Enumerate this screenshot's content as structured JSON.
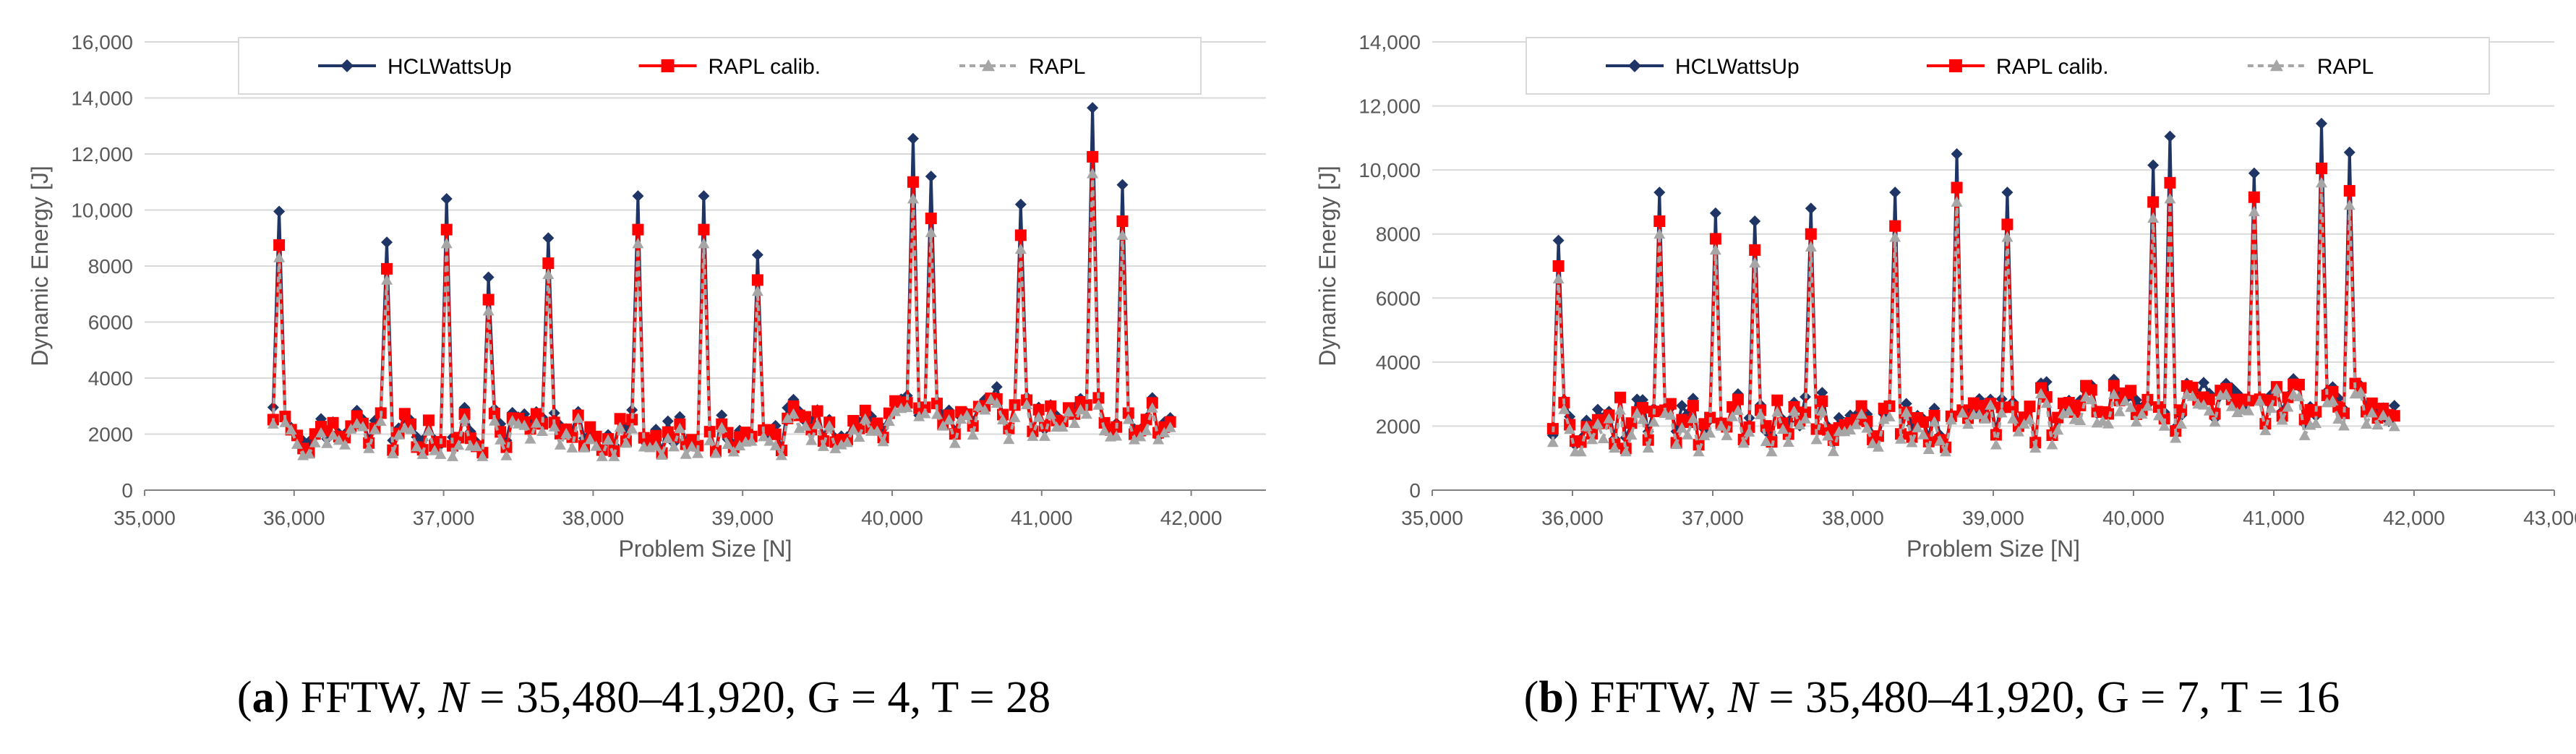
{
  "colors": {
    "hcl": "#1F3566",
    "rapl_calib": "#FF0000",
    "rapl": "#A6A6A6",
    "grid": "#D9D9D9",
    "axis": "#808080",
    "text": "#595959"
  },
  "chart_data": [
    {
      "type": "line",
      "xlabel": "Problem Size [N]",
      "ylabel": "Dynamic Energy [J]",
      "xlim": [
        35000,
        42500
      ],
      "ylim": [
        0,
        16000
      ],
      "x_ticks": [
        "35,000",
        "36,000",
        "37,000",
        "38,000",
        "39,000",
        "40,000",
        "41,000",
        "42,000"
      ],
      "y_ticks": [
        "0",
        "2000",
        "4000",
        "6000",
        "8000",
        "10,000",
        "12,000",
        "14,000",
        "16,000"
      ],
      "grid": "horizontal",
      "legend": "top",
      "peaks": [
        {
          "x": 35900,
          "hcl": 9950,
          "rapl_calib": 8750,
          "rapl": 8300
        },
        {
          "x": 36600,
          "hcl": 8850,
          "rapl_calib": 7900,
          "rapl": 7500
        },
        {
          "x": 37000,
          "hcl": 10400,
          "rapl_calib": 9300,
          "rapl": 8800
        },
        {
          "x": 37300,
          "hcl": 7600,
          "rapl_calib": 6800,
          "rapl": 6400
        },
        {
          "x": 37700,
          "hcl": 9000,
          "rapl_calib": 8100,
          "rapl": 7700
        },
        {
          "x": 38280,
          "hcl": 10500,
          "rapl_calib": 9300,
          "rapl": 8800
        },
        {
          "x": 38720,
          "hcl": 10500,
          "rapl_calib": 9300,
          "rapl": 8800
        },
        {
          "x": 39100,
          "hcl": 8400,
          "rapl_calib": 7500,
          "rapl": 7100
        },
        {
          "x": 40120,
          "hcl": 12550,
          "rapl_calib": 11000,
          "rapl": 10400
        },
        {
          "x": 40260,
          "hcl": 11200,
          "rapl_calib": 9700,
          "rapl": 9200
        },
        {
          "x": 40840,
          "hcl": 10200,
          "rapl_calib": 9100,
          "rapl": 8600
        },
        {
          "x": 41340,
          "hcl": 13650,
          "rapl_calib": 11900,
          "rapl": 11300
        },
        {
          "x": 41540,
          "hcl": 10900,
          "rapl_calib": 9600,
          "rapl": 9100
        }
      ]
    },
    {
      "type": "line",
      "xlabel": "Problem Size [N]",
      "ylabel": "Dynamic Energy [J]",
      "xlim": [
        35000,
        43000
      ],
      "ylim": [
        0,
        14000
      ],
      "x_ticks": [
        "35,000",
        "36,000",
        "37,000",
        "38,000",
        "39,000",
        "40,000",
        "41,000",
        "42,000",
        "43,000"
      ],
      "y_ticks": [
        "0",
        "2000",
        "4000",
        "6000",
        "8000",
        "10,000",
        "12,000",
        "14,000"
      ],
      "grid": "horizontal",
      "legend": "top",
      "peaks": [
        {
          "x": 35900,
          "hcl": 7800,
          "rapl_calib": 7000,
          "rapl": 6600
        },
        {
          "x": 36600,
          "hcl": 9300,
          "rapl_calib": 8400,
          "rapl": 8000
        },
        {
          "x": 37000,
          "hcl": 8650,
          "rapl_calib": 7850,
          "rapl": 7500
        },
        {
          "x": 37300,
          "hcl": 8400,
          "rapl_calib": 7500,
          "rapl": 7100
        },
        {
          "x": 37700,
          "hcl": 8800,
          "rapl_calib": 8000,
          "rapl": 7600
        },
        {
          "x": 38280,
          "hcl": 9300,
          "rapl_calib": 8250,
          "rapl": 7900
        },
        {
          "x": 38720,
          "hcl": 10500,
          "rapl_calib": 9450,
          "rapl": 9000
        },
        {
          "x": 39100,
          "hcl": 9300,
          "rapl_calib": 8300,
          "rapl": 7900
        },
        {
          "x": 40120,
          "hcl": 10150,
          "rapl_calib": 9000,
          "rapl": 8500
        },
        {
          "x": 40260,
          "hcl": 11050,
          "rapl_calib": 9600,
          "rapl": 9100
        },
        {
          "x": 40840,
          "hcl": 9900,
          "rapl_calib": 9150,
          "rapl": 8700
        },
        {
          "x": 41340,
          "hcl": 11450,
          "rapl_calib": 10050,
          "rapl": 9600
        },
        {
          "x": 41540,
          "hcl": 10550,
          "rapl_calib": 9350,
          "rapl": 8900
        }
      ]
    }
  ],
  "legend_labels": {
    "hcl": "HCLWattsUp",
    "rapl_calib": "RAPL calib.",
    "rapl": "RAPL"
  },
  "captions": [
    {
      "letter": "a",
      "app": "FFTW,",
      "nvar": "N",
      "range": "= 35,480–41,920,",
      "params": "G = 4, T = 28"
    },
    {
      "letter": "b",
      "app": "FFTW,",
      "nvar": "N",
      "range": "= 35,480–41,920,",
      "params": "G = 7, T = 16"
    }
  ]
}
